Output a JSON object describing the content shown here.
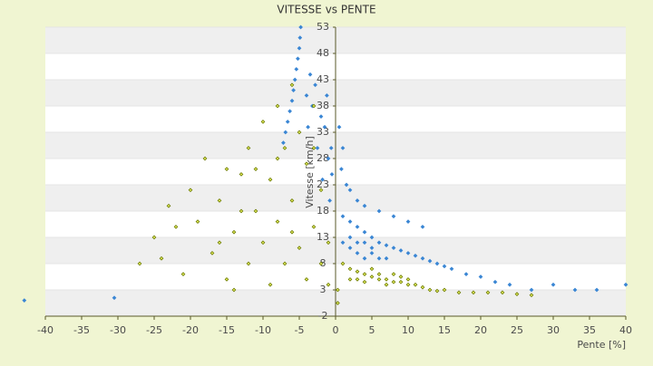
{
  "chart_data": {
    "type": "scatter",
    "title": "VITESSE vs PENTE",
    "x_label": "Pente [%]",
    "y_label": "Vitesse [km/h]",
    "xlim": [
      -40,
      40
    ],
    "xticks": [
      -40,
      -35,
      -30,
      -25,
      -20,
      -15,
      -10,
      -5,
      0,
      5,
      10,
      15,
      20,
      25,
      30,
      35,
      40
    ],
    "ylim": [
      -2,
      53
    ],
    "yticks": [
      -2,
      3,
      8,
      13,
      18,
      23,
      28,
      33,
      38,
      43,
      48,
      53
    ],
    "grid": true,
    "series": [
      {
        "color": "#3a86d4",
        "x": [
          -4.8,
          -4.9,
          -5,
          -5.2,
          -5.4,
          -5.6,
          -5.8,
          -6,
          -6.3,
          -6.6,
          -6.9,
          -7.2,
          -3.5,
          -2.8,
          -3.2,
          -2,
          -1.5,
          -2.5,
          -1,
          -0.5,
          -1.8,
          -0.8,
          -4,
          -3.8,
          -1.2,
          -0.6,
          0.5,
          1,
          0.8,
          1.5,
          2,
          3,
          4,
          6,
          8,
          10,
          12,
          1,
          2,
          3,
          4,
          5,
          6,
          7,
          8,
          9,
          10,
          11,
          12,
          13,
          14,
          15,
          1,
          2,
          3,
          4,
          5,
          6,
          7,
          2,
          3,
          4,
          5,
          16,
          18,
          20,
          22,
          24,
          27,
          30,
          33,
          36,
          40,
          -42.9,
          -30.5
        ],
        "values": [
          53,
          51,
          49,
          47,
          45,
          43,
          41,
          39,
          37,
          35,
          33,
          31,
          44,
          42,
          38,
          36,
          34,
          30,
          28,
          25,
          24,
          20,
          40,
          34,
          40,
          30,
          34,
          30,
          26,
          23,
          22,
          20,
          19,
          18,
          17,
          16,
          15,
          17,
          16,
          15,
          14,
          13,
          12,
          11.5,
          11,
          10.5,
          10,
          9.5,
          9,
          8.5,
          8,
          7.5,
          12,
          11,
          10,
          9,
          10,
          9,
          9,
          13,
          12,
          12,
          11,
          7,
          6,
          5.5,
          4.5,
          4,
          3,
          4,
          3,
          3,
          4,
          1,
          1.5
        ]
      },
      {
        "color": "#6b7a00",
        "x": [
          -27,
          -25,
          -23,
          -22,
          -20,
          -18,
          -17,
          -16,
          -15,
          -14,
          -13,
          -12,
          -12,
          -11,
          -10,
          -10,
          -9,
          -9,
          -8,
          -8,
          -7,
          -7,
          -6,
          -6,
          -5,
          -5,
          -4,
          -4,
          -3,
          -3,
          -2,
          -2,
          -1,
          -1,
          -24,
          -19,
          -21,
          -16,
          -14,
          -11,
          -13,
          -8,
          -6,
          -3,
          -15,
          2,
          3,
          4,
          5,
          6,
          7,
          8,
          9,
          10,
          11,
          12,
          2,
          3,
          4,
          5,
          6,
          7,
          8,
          9,
          10,
          13,
          14,
          15,
          17,
          19,
          21,
          23,
          25,
          27,
          0.3,
          0.3,
          1
        ],
        "values": [
          8,
          13,
          19,
          15,
          22,
          28,
          10,
          20,
          5,
          14,
          25,
          30,
          8,
          18,
          35,
          12,
          24,
          4,
          38,
          16,
          30,
          8,
          42,
          20,
          33,
          11,
          27,
          5,
          38,
          15,
          22,
          8,
          12,
          4,
          9,
          16,
          6,
          12,
          3,
          26,
          18,
          28,
          14,
          30,
          26,
          7,
          6.5,
          6,
          5.5,
          5,
          5,
          4.5,
          4.5,
          4,
          4,
          3.5,
          5,
          5,
          4.5,
          7,
          6,
          4,
          6,
          5.5,
          5,
          3,
          2.8,
          3,
          2.5,
          2.5,
          2.5,
          2.5,
          2.2,
          2,
          3,
          0.5,
          8
        ]
      }
    ]
  }
}
